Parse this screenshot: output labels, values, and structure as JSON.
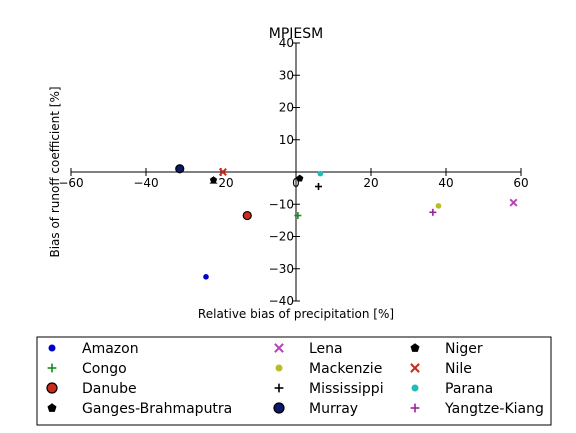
{
  "chart_data": {
    "type": "scatter",
    "title": "MPIESM",
    "xlabel": "Relative bias of precipitation [%]",
    "ylabel": "Bias of runoff coefficient [%]",
    "xlim": [
      -60,
      60
    ],
    "ylim": [
      -40,
      40
    ],
    "xticks": [
      -60,
      -40,
      -20,
      0,
      20,
      40,
      60
    ],
    "yticks": [
      -40,
      -30,
      -20,
      -10,
      10,
      20,
      30,
      40
    ],
    "ytick_labels": [
      "−40",
      "−30",
      "−20",
      "−10",
      "10",
      "20",
      "30",
      "40"
    ],
    "xtick_labels": [
      "−60",
      "−40",
      "−20",
      "0",
      "20",
      "40",
      "60"
    ],
    "grid": false,
    "legend_placement": "bottom",
    "series": [
      {
        "name": "Amazon",
        "marker": "dot",
        "color": "#0000cc",
        "x": -24,
        "y": -32.5
      },
      {
        "name": "Congo",
        "marker": "plus",
        "color": "#1a8a1a",
        "x": 0.5,
        "y": -13.5
      },
      {
        "name": "Danube",
        "marker": "circle",
        "color": "#cc2a1a",
        "x": -13,
        "y": -13.5
      },
      {
        "name": "Ganges-Brahmaputra",
        "marker": "pentagon",
        "color": "#000000",
        "x": -22,
        "y": -2.5
      },
      {
        "name": "Lena",
        "marker": "x",
        "color": "#bb44bb",
        "x": 58,
        "y": -9.5
      },
      {
        "name": "Mackenzie",
        "marker": "dot",
        "color": "#bbbb22",
        "x": 38,
        "y": -10.5
      },
      {
        "name": "Mississippi",
        "marker": "plus",
        "color": "#000000",
        "x": 6,
        "y": -4.5
      },
      {
        "name": "Murray",
        "marker": "circle",
        "color": "#0a1a6a",
        "x": -31,
        "y": 1
      },
      {
        "name": "Niger",
        "marker": "pentagon",
        "color": "#000000",
        "x": 1,
        "y": -2
      },
      {
        "name": "Nile",
        "marker": "x",
        "color": "#cc2a1a",
        "x": -19.5,
        "y": 0
      },
      {
        "name": "Parana",
        "marker": "dot",
        "color": "#22bbbb",
        "x": 6.5,
        "y": -0.5
      },
      {
        "name": "Yangtze-Kiang",
        "marker": "plus",
        "color": "#992299",
        "x": 36.5,
        "y": -12.5
      }
    ]
  }
}
